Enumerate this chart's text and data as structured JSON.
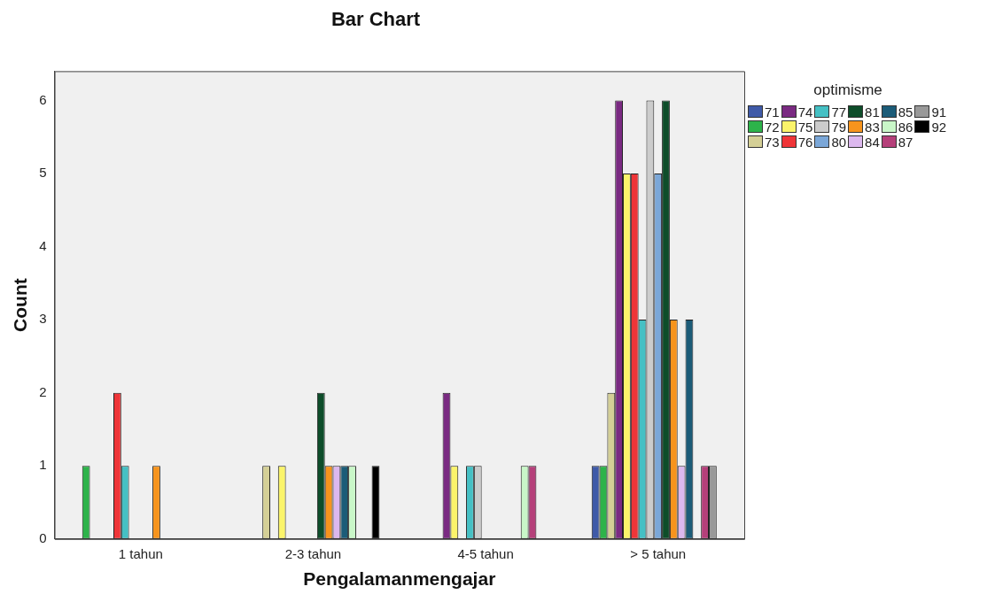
{
  "chart_data": {
    "type": "bar",
    "title": "Bar Chart",
    "xlabel": "Pengalamanmengajar",
    "ylabel": "Count",
    "legend_title": "optimisme",
    "legend": "top right",
    "grid": false,
    "categories": [
      "1 tahun",
      "2-3 tahun",
      "4-5 tahun",
      "> 5 tahun"
    ],
    "ylim": [
      0,
      6.4
    ],
    "yticks": [
      0,
      1,
      2,
      3,
      4,
      5,
      6
    ],
    "series": [
      {
        "name": "71",
        "color": "#3f5aa8",
        "values": [
          0,
          0,
          0,
          1
        ]
      },
      {
        "name": "72",
        "color": "#2db34a",
        "values": [
          1,
          0,
          0,
          1
        ]
      },
      {
        "name": "73",
        "color": "#d4cf96",
        "values": [
          0,
          1,
          0,
          2
        ]
      },
      {
        "name": "74",
        "color": "#7a2a82",
        "values": [
          0,
          0,
          2,
          6
        ]
      },
      {
        "name": "75",
        "color": "#fbf46a",
        "values": [
          0,
          1,
          1,
          5
        ]
      },
      {
        "name": "76",
        "color": "#ef3538",
        "values": [
          2,
          0,
          0,
          5
        ]
      },
      {
        "name": "77",
        "color": "#45c0c4",
        "values": [
          1,
          0,
          1,
          3
        ]
      },
      {
        "name": "79",
        "color": "#cccccc",
        "values": [
          0,
          0,
          1,
          6
        ]
      },
      {
        "name": "80",
        "color": "#7ba7d8",
        "values": [
          0,
          0,
          0,
          5
        ]
      },
      {
        "name": "81",
        "color": "#0e4d2a",
        "values": [
          0,
          2,
          0,
          6
        ]
      },
      {
        "name": "83",
        "color": "#f7941d",
        "values": [
          1,
          1,
          0,
          3
        ]
      },
      {
        "name": "84",
        "color": "#dcb8ee",
        "values": [
          0,
          1,
          0,
          1
        ]
      },
      {
        "name": "85",
        "color": "#1c5c78",
        "values": [
          0,
          1,
          0,
          3
        ]
      },
      {
        "name": "86",
        "color": "#c9f7c8",
        "values": [
          0,
          1,
          1,
          0
        ]
      },
      {
        "name": "87",
        "color": "#b5407a",
        "values": [
          0,
          0,
          1,
          1
        ]
      },
      {
        "name": "91",
        "color": "#999999",
        "values": [
          0,
          0,
          0,
          1
        ]
      },
      {
        "name": "92",
        "color": "#000000",
        "values": [
          0,
          1,
          0,
          0
        ]
      }
    ]
  }
}
